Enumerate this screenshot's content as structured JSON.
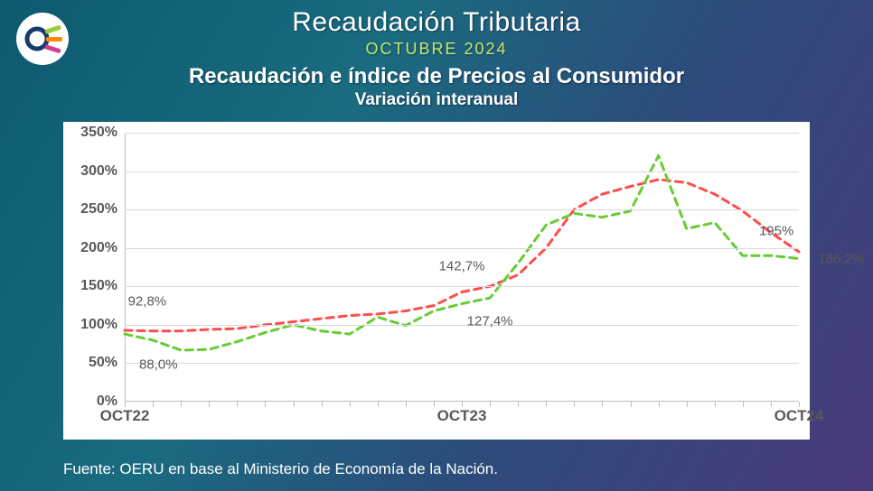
{
  "header": {
    "title": "Recaudación Tributaria",
    "date": "OCTUBRE 2024",
    "date_color": "#c5e86c",
    "chart_title": "Recaudación e índice de Precios al Consumidor",
    "chart_subtitle": "Variación interanual"
  },
  "source": "Fuente: OERU en base al Ministerio de Economía de la Nación.",
  "chart": {
    "type": "line",
    "background_color": "#ffffff",
    "grid_color": "#d9d9d9",
    "axis_color": "#bfbfbf",
    "y": {
      "min": 0,
      "max": 350,
      "step": 50,
      "tick_labels": [
        "0%",
        "50%",
        "100%",
        "150%",
        "200%",
        "250%",
        "300%",
        "350%"
      ],
      "label_color": "#595959",
      "label_fontsize": 16
    },
    "x": {
      "n": 25,
      "ticks": [
        {
          "i": 0,
          "label": "OCT22"
        },
        {
          "i": 12,
          "label": "OCT23"
        },
        {
          "i": 24,
          "label": "OCT24"
        }
      ],
      "minor_tick_every": 1,
      "label_color": "#595959",
      "label_fontsize": 17
    },
    "series": [
      {
        "name": "ipc",
        "color": "#ff4d4d",
        "width": 3,
        "dash": "8 6",
        "values": [
          92.8,
          92,
          92,
          94,
          95,
          100,
          104,
          108,
          112,
          114,
          118,
          125,
          142.7,
          150,
          165,
          200,
          250,
          270,
          280,
          289,
          285,
          270,
          248,
          220,
          195
        ]
      },
      {
        "name": "recaudacion",
        "color": "#66cc33",
        "width": 3,
        "dash": "8 6",
        "values": [
          88.0,
          80,
          67,
          68,
          78,
          90,
          100,
          92,
          88,
          110,
          99,
          118,
          127.4,
          135,
          180,
          230,
          245,
          240,
          248,
          320,
          225,
          233,
          190,
          190,
          186.2
        ]
      }
    ],
    "annotations": [
      {
        "text": "92,8%",
        "i": 0.8,
        "v": 130,
        "color": "#595959"
      },
      {
        "text": "88,0%",
        "i": 1.2,
        "v": 48,
        "color": "#595959"
      },
      {
        "text": "142,7%",
        "i": 12,
        "v": 176,
        "color": "#595959"
      },
      {
        "text": "127,4%",
        "i": 13,
        "v": 105,
        "color": "#595959"
      },
      {
        "text": "195%",
        "i": 23.2,
        "v": 222,
        "color": "#595959"
      },
      {
        "text": "186,2%",
        "i": 25.5,
        "v": 186,
        "color": "#595959"
      }
    ]
  },
  "logo": {
    "ring_color": "#1a3a6e",
    "bars": [
      "#9acd32",
      "#ff8c00",
      "#d43f8d"
    ]
  }
}
